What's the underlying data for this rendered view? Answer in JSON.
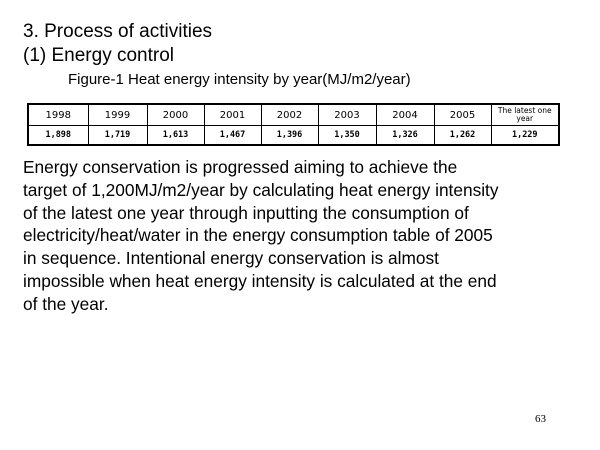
{
  "section": {
    "heading": "3. Process of activities",
    "subheading": "(1) Energy control"
  },
  "figure": {
    "caption": "Figure-1 Heat energy intensity by year(MJ/m2/year)",
    "headers": [
      "1998",
      "1999",
      "2000",
      "2001",
      "2002",
      "2003",
      "2004",
      "2005",
      "The latest one year"
    ],
    "values": [
      "1,898",
      "1,719",
      "1,613",
      "1,467",
      "1,396",
      "1,350",
      "1,326",
      "1,262",
      "1,229"
    ]
  },
  "body": {
    "lines": [
      "Energy conservation is progressed aiming to achieve the",
      "target of 1,200MJ/m2/year by calculating heat energy intensity",
      "of the latest one year through inputting the consumption of",
      "electricity/heat/water in the energy consumption table of 2005",
      "in sequence. Intentional energy conservation is almost",
      "impossible when heat energy intensity is calculated at the end",
      "of the year."
    ]
  },
  "page_number": "63"
}
